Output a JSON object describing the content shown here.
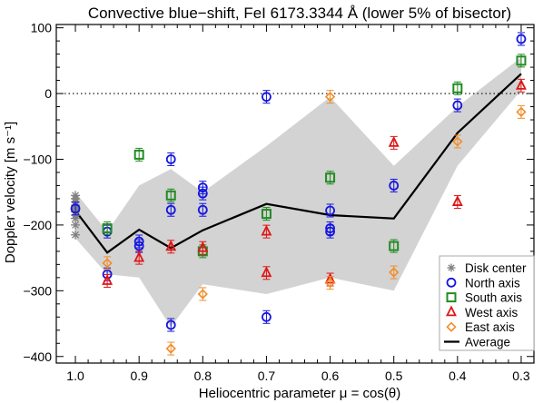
{
  "chart_data": {
    "type": "scatter",
    "title": "Convective blue−shift, FeI 6173.3344 Å (lower 5% of bisector)",
    "xlabel": "Heliocentric parameter μ = cos(θ)",
    "ylabel": "Doppler velocity [m s⁻¹]",
    "xlim": [
      1.03,
      0.28
    ],
    "ylim": [
      -410,
      105
    ],
    "x_ticks": [
      1.0,
      0.9,
      0.8,
      0.7,
      0.6,
      0.5,
      0.4,
      0.3
    ],
    "x_tick_labels": [
      "1.0",
      "0.9",
      "0.8",
      "0.7",
      "0.6",
      "0.5",
      "0.4",
      "0.3"
    ],
    "y_ticks": [
      100,
      0,
      -100,
      -200,
      -300,
      -400
    ],
    "y_tick_labels": [
      "100",
      "0",
      "−100",
      "−200",
      "−300",
      "−400"
    ],
    "zero_line": true,
    "grid": false,
    "legend_position": "bottom-right",
    "band": {
      "color": "#d3d3d3",
      "x": [
        1.0,
        0.95,
        0.9,
        0.85,
        0.8,
        0.7,
        0.6,
        0.5,
        0.4,
        0.3
      ],
      "upper": [
        -150,
        -210,
        -140,
        -115,
        -150,
        -80,
        -5,
        -110,
        -20,
        55
      ],
      "lower": [
        -220,
        -275,
        -280,
        -355,
        -290,
        -305,
        -280,
        -300,
        -110,
        5
      ]
    },
    "series": [
      {
        "name": "Disk center",
        "marker": "asterisk",
        "color": "#808080",
        "x": [
          1.0,
          1.0,
          1.0,
          1.0,
          1.0,
          1.0,
          1.0,
          1.0,
          1.0,
          1.0
        ],
        "y": [
          -155,
          -160,
          -165,
          -170,
          -175,
          -180,
          -185,
          -190,
          -200,
          -215
        ]
      },
      {
        "name": "North axis",
        "marker": "circle",
        "color": "#1515e0",
        "x": [
          1.0,
          0.95,
          0.95,
          0.9,
          0.9,
          0.85,
          0.85,
          0.85,
          0.8,
          0.8,
          0.8,
          0.7,
          0.7,
          0.6,
          0.6,
          0.6,
          0.5,
          0.4,
          0.3
        ],
        "y": [
          -175,
          -210,
          -275,
          -225,
          -232,
          -100,
          -177,
          -352,
          -143,
          -152,
          -177,
          -5,
          -340,
          -178,
          -205,
          -210,
          -140,
          -18,
          83
        ]
      },
      {
        "name": "South axis",
        "marker": "square",
        "color": "#228b22",
        "x": [
          0.95,
          0.9,
          0.85,
          0.8,
          0.7,
          0.6,
          0.5,
          0.4,
          0.3
        ],
        "y": [
          -205,
          -93,
          -155,
          -240,
          -183,
          -128,
          -232,
          8,
          50
        ]
      },
      {
        "name": "West axis",
        "marker": "triangle",
        "color": "#e01515",
        "x": [
          0.95,
          0.9,
          0.85,
          0.8,
          0.7,
          0.7,
          0.6,
          0.5,
          0.4,
          0.3
        ],
        "y": [
          -285,
          -250,
          -233,
          -235,
          -210,
          -273,
          -283,
          -75,
          -165,
          12
        ]
      },
      {
        "name": "East axis",
        "marker": "diamond",
        "color": "#f28c28",
        "x": [
          0.95,
          0.85,
          0.8,
          0.6,
          0.6,
          0.5,
          0.4,
          0.3
        ],
        "y": [
          -258,
          -388,
          -305,
          -5,
          -288,
          -272,
          -73,
          -28
        ]
      },
      {
        "name": "Average",
        "marker": "line",
        "color": "#000000",
        "x": [
          1.0,
          0.95,
          0.9,
          0.85,
          0.8,
          0.7,
          0.6,
          0.5,
          0.4,
          0.3
        ],
        "y": [
          -178,
          -242,
          -207,
          -235,
          -208,
          -168,
          -185,
          -190,
          -60,
          30
        ]
      }
    ]
  }
}
